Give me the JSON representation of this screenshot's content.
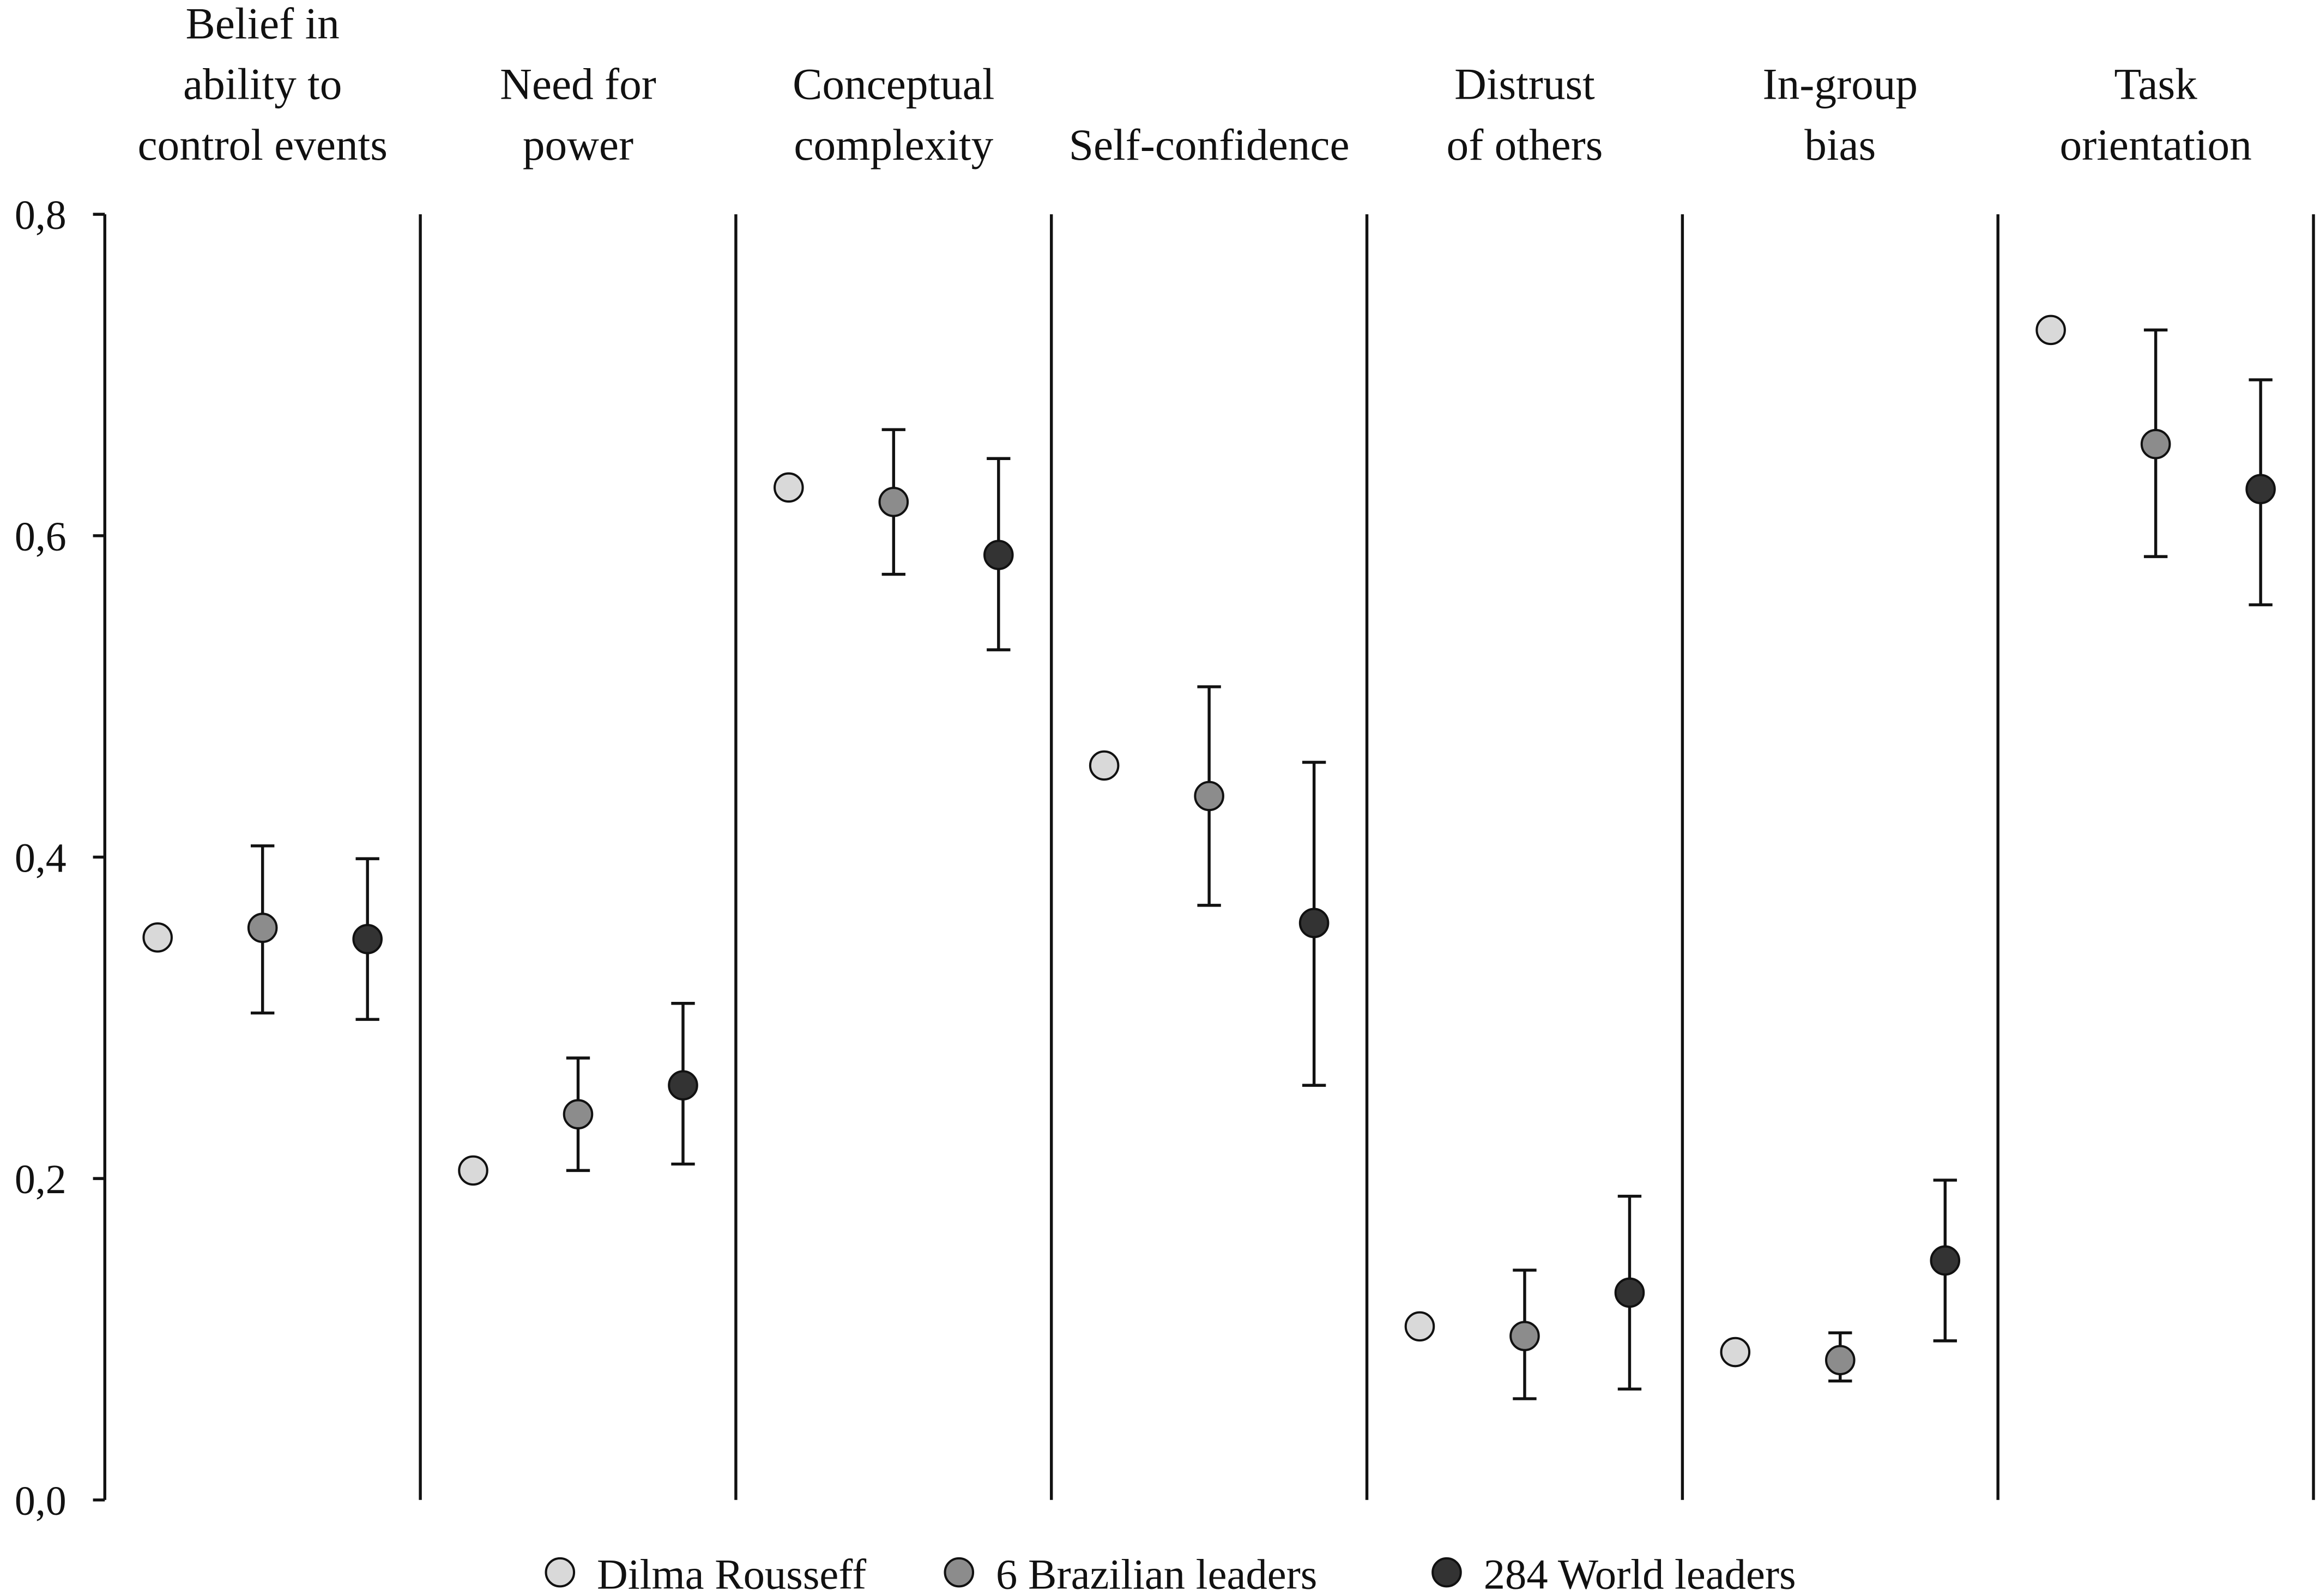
{
  "chart_data": {
    "type": "scatter",
    "subtype": "dot plot with error bars, paneled by category",
    "categories": [
      [
        "Belief in",
        "ability to",
        "control events"
      ],
      [
        "Need for",
        "power"
      ],
      [
        "Conceptual",
        "complexity"
      ],
      [
        "Self-confidence"
      ],
      [
        "Distrust",
        "of others"
      ],
      [
        "In-group",
        "bias"
      ],
      [
        "Task",
        "orientation"
      ]
    ],
    "ylim": [
      0,
      0.8
    ],
    "yticks": [
      "0,0",
      "0,2",
      "0,4",
      "0,6",
      "0,8"
    ],
    "ytick_values": [
      0,
      0.2,
      0.4,
      0.6,
      0.8
    ],
    "grid": false,
    "legend_position": "bottom",
    "series": [
      {
        "name": "Dilma Rousseff",
        "color": "#d9d9d9",
        "values": [
          0.35,
          0.205,
          0.63,
          0.457,
          0.108,
          0.092,
          0.728
        ],
        "err_low": null,
        "err_high": null
      },
      {
        "name": "6 Brazilian leaders",
        "color": "#8c8c8c",
        "values": [
          0.356,
          0.24,
          0.621,
          0.438,
          0.102,
          0.087,
          0.657
        ],
        "err_low": [
          0.303,
          0.205,
          0.576,
          0.37,
          0.063,
          0.074,
          0.587
        ],
        "err_high": [
          0.407,
          0.275,
          0.666,
          0.506,
          0.143,
          0.104,
          0.728
        ]
      },
      {
        "name": "284 World leaders",
        "color": "#333333",
        "values": [
          0.349,
          0.258,
          0.588,
          0.359,
          0.129,
          0.149,
          0.629
        ],
        "err_low": [
          0.299,
          0.209,
          0.529,
          0.258,
          0.069,
          0.099,
          0.557
        ],
        "err_high": [
          0.399,
          0.309,
          0.648,
          0.459,
          0.189,
          0.199,
          0.697
        ]
      }
    ]
  }
}
